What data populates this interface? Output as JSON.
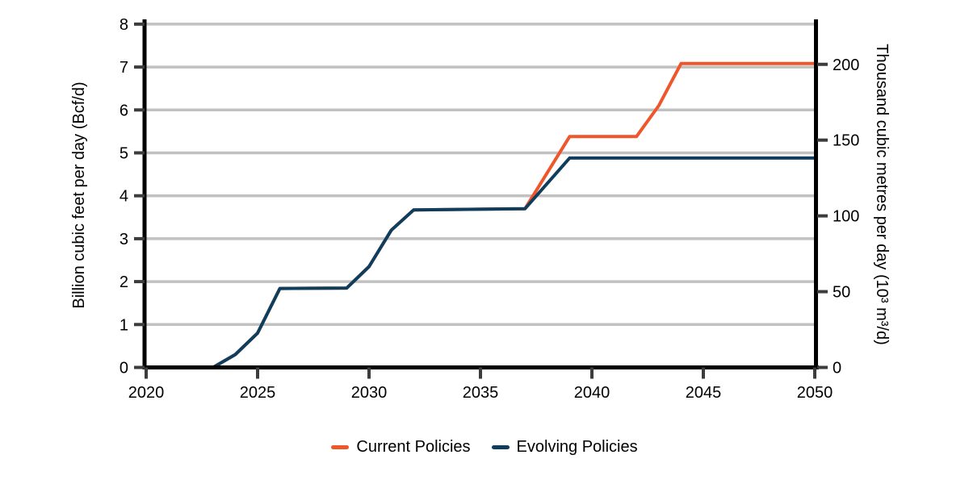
{
  "background_color": "#ffffff",
  "chart_data": {
    "type": "line",
    "title": "",
    "grid": "horizontal",
    "grid_color": "#c1c1c1",
    "axis_line_color": "#000000",
    "tick_color": "#3c3c3c",
    "legend_position": "bottom",
    "x_axis": {
      "label": "",
      "range": [
        2020,
        2050
      ],
      "ticks": [
        2020,
        2025,
        2030,
        2035,
        2040,
        2045,
        2050
      ]
    },
    "y_left": {
      "label": "Billion cubic feet per day (Bcf/d)",
      "range": [
        0,
        8
      ],
      "ticks": [
        0,
        1,
        2,
        3,
        4,
        5,
        6,
        7,
        8
      ]
    },
    "y_right": {
      "label": "Thousand cubic metres per day (10³ m³/d)",
      "range": [
        0,
        226.5
      ],
      "ticks": [
        0,
        50,
        100,
        150,
        200
      ]
    },
    "legend": [
      {
        "label": "Current Policies",
        "color": "#f0562b"
      },
      {
        "label": "Evolving Policies",
        "color": "#0f3e5d"
      }
    ],
    "series": [
      {
        "name": "Current Policies",
        "color": "#f0562b",
        "unit": "Bcf/d",
        "points": [
          [
            2023,
            0
          ],
          [
            2024,
            0.3
          ],
          [
            2025,
            0.8
          ],
          [
            2026,
            1.84
          ],
          [
            2029,
            1.85
          ],
          [
            2030,
            2.35
          ],
          [
            2031,
            3.2
          ],
          [
            2032,
            3.67
          ],
          [
            2037,
            3.7
          ],
          [
            2039,
            5.38
          ],
          [
            2042,
            5.38
          ],
          [
            2043,
            6.1
          ],
          [
            2044,
            7.08
          ],
          [
            2050,
            7.08
          ]
        ]
      },
      {
        "name": "Evolving Policies",
        "color": "#0f3e5d",
        "unit": "Bcf/d",
        "points": [
          [
            2023,
            0
          ],
          [
            2024,
            0.3
          ],
          [
            2025,
            0.8
          ],
          [
            2026,
            1.84
          ],
          [
            2029,
            1.85
          ],
          [
            2030,
            2.35
          ],
          [
            2031,
            3.2
          ],
          [
            2032,
            3.67
          ],
          [
            2037,
            3.7
          ],
          [
            2039,
            4.88
          ],
          [
            2050,
            4.88
          ]
        ]
      }
    ]
  }
}
